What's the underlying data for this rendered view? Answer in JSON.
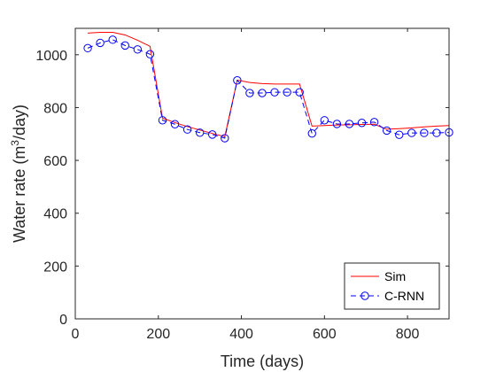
{
  "chart_data": {
    "type": "line",
    "xlabel": "Time (days)",
    "ylabel_prefix": "Water rate (m",
    "ylabel_sup": "3",
    "ylabel_suffix": "/day)",
    "xlim": [
      0,
      900
    ],
    "ylim": [
      0,
      1100
    ],
    "xticks": [
      0,
      200,
      400,
      600,
      800
    ],
    "yticks": [
      0,
      200,
      400,
      600,
      800,
      1000
    ],
    "grid": false,
    "legend_position": "bottom-right",
    "series": [
      {
        "name": "Sim",
        "color": "#ff0000",
        "style": "solid",
        "x": [
          30,
          60,
          90,
          120,
          150,
          180,
          210,
          240,
          270,
          300,
          330,
          360,
          390,
          420,
          450,
          480,
          510,
          540,
          570,
          600,
          630,
          660,
          690,
          720,
          750,
          780,
          810,
          840,
          870,
          900
        ],
        "y": [
          1082,
          1085,
          1085,
          1075,
          1055,
          1032,
          760,
          743,
          728,
          715,
          702,
          690,
          904,
          895,
          891,
          889,
          889,
          889,
          730,
          732,
          734,
          735,
          736,
          737,
          718,
          720,
          723,
          727,
          730,
          732
        ]
      },
      {
        "name": "C-RNN",
        "color": "#0000ff",
        "style": "dashed",
        "marker": "circle",
        "x": [
          30,
          60,
          90,
          120,
          150,
          180,
          210,
          240,
          270,
          300,
          330,
          360,
          390,
          420,
          450,
          480,
          510,
          540,
          570,
          600,
          630,
          660,
          690,
          720,
          750,
          780,
          810,
          840,
          870,
          900
        ],
        "y": [
          1025,
          1045,
          1057,
          1035,
          1020,
          1002,
          752,
          737,
          717,
          705,
          698,
          684,
          903,
          855,
          855,
          858,
          858,
          858,
          702,
          752,
          738,
          738,
          742,
          745,
          713,
          697,
          704,
          704,
          704,
          706
        ]
      }
    ]
  }
}
